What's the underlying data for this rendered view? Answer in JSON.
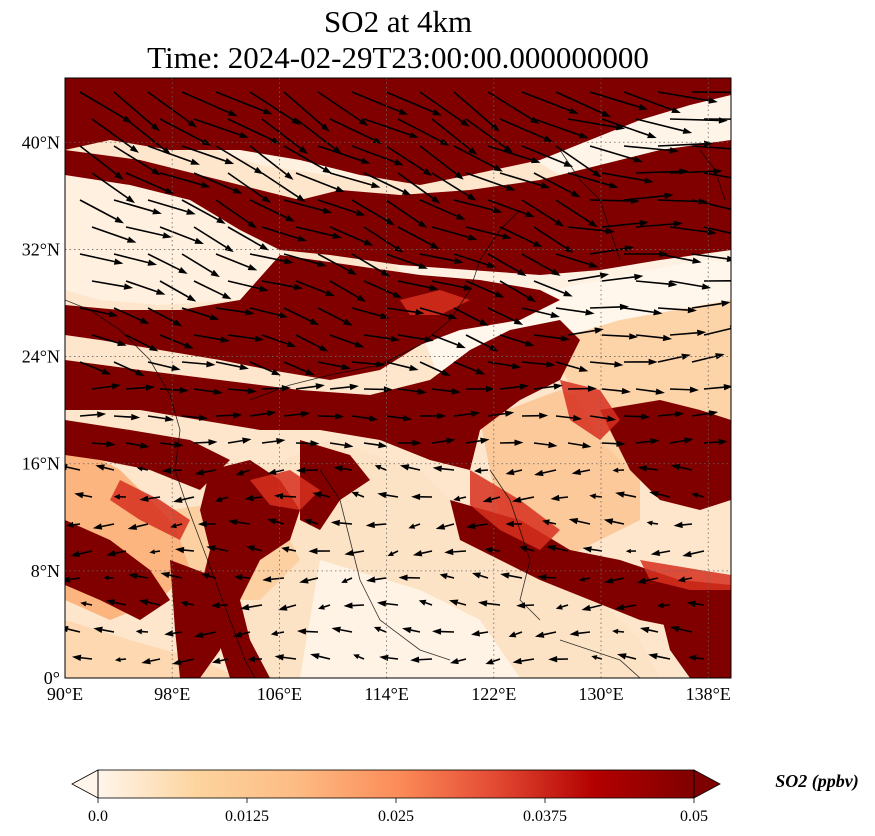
{
  "title": {
    "line1": "SO2 at 4km",
    "line2": "Time: 2024-02-29T23:00:00.000000000"
  },
  "map": {
    "extent": {
      "lon_min": 90,
      "lon_max": 139.7,
      "lat_min": 0,
      "lat_max": 44.8
    },
    "x_ticks": [
      {
        "value": 90,
        "label": "90°E"
      },
      {
        "value": 98,
        "label": "98°E"
      },
      {
        "value": 106,
        "label": "106°E"
      },
      {
        "value": 114,
        "label": "114°E"
      },
      {
        "value": 122,
        "label": "122°E"
      },
      {
        "value": 130,
        "label": "130°E"
      },
      {
        "value": 138,
        "label": "138°E"
      }
    ],
    "y_ticks": [
      {
        "value": 0,
        "label": "0°"
      },
      {
        "value": 8,
        "label": "8°N"
      },
      {
        "value": 16,
        "label": "16°N"
      },
      {
        "value": 24,
        "label": "24°N"
      },
      {
        "value": 32,
        "label": "32°N"
      },
      {
        "value": 40,
        "label": "40°N"
      }
    ],
    "gridlines": "dotted",
    "field": "SO2 concentration, mostly saturated (dark red) over land and north, low values over ocean south-east",
    "wind_vectors": "westerly/north-westerly flow north of 20°N, weak easterly flow in the tropics"
  },
  "colorbar": {
    "label": "SO2 (ppbv)",
    "min": 0.0,
    "max": 0.05,
    "extend": "both",
    "ticks": [
      {
        "value": 0.0,
        "label": "0.0"
      },
      {
        "value": 0.0125,
        "label": "0.0125"
      },
      {
        "value": 0.025,
        "label": "0.025"
      },
      {
        "value": 0.0375,
        "label": "0.0375"
      },
      {
        "value": 0.05,
        "label": "0.05"
      }
    ],
    "colors": [
      "#fff5eb",
      "#fdd49e",
      "#fdbb84",
      "#fc8d59",
      "#e34a33",
      "#b30000",
      "#7f0000"
    ],
    "colormap": "OrRd"
  }
}
